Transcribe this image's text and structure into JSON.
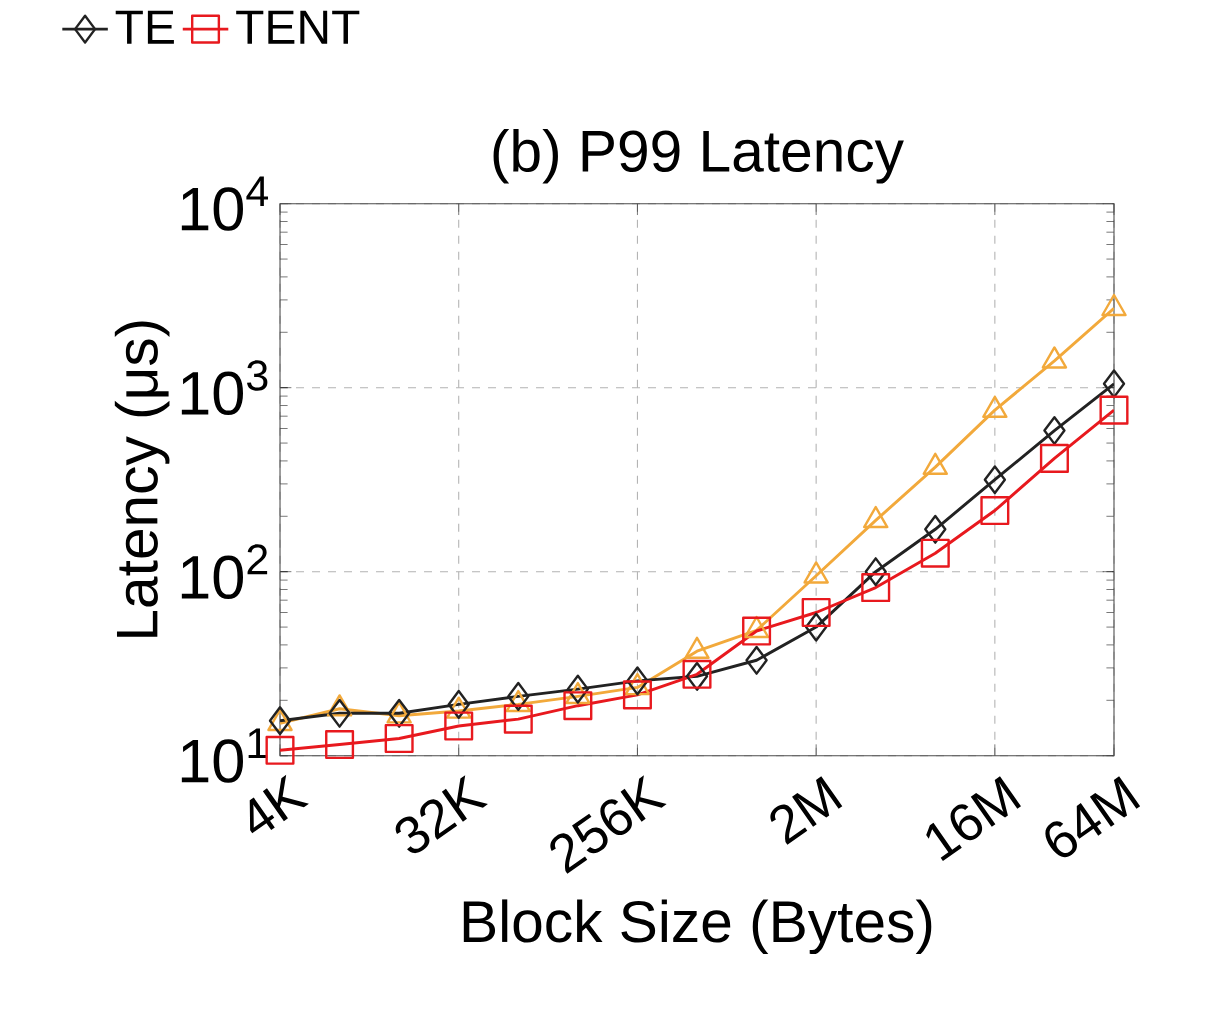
{
  "chart_data": {
    "type": "line",
    "title": "(b) P99 Latency",
    "xlabel": "Block Size (Bytes)",
    "ylabel": "Latency (μs)",
    "log": "y",
    "grid": true,
    "legend": "top",
    "line_style": "solid",
    "categories": [
      "4K",
      null,
      null,
      "32K",
      null,
      null,
      "256K",
      null,
      null,
      "2M",
      null,
      null,
      "16M",
      null,
      "64M"
    ],
    "ylim": [
      10,
      10000
    ],
    "yticks": [
      {
        "value": 10,
        "label": "10$^{1}$"
      },
      {
        "value": 100,
        "label": "10$^{2}$"
      },
      {
        "value": 1000,
        "label": "10$^{3}$"
      },
      {
        "value": 10000,
        "label": "10$^{4}$"
      }
    ],
    "series": [
      {
        "color": "#f2a93b",
        "marker": "triangle",
        "values": [
          15,
          18,
          16.5,
          17.5,
          19,
          21,
          23.5,
          37,
          48,
          95,
          190,
          370,
          755,
          1400,
          2700
        ]
      },
      {
        "name": "TE",
        "color": "#222222",
        "marker": "diamond",
        "values": [
          15.5,
          17,
          17,
          19,
          21,
          23,
          25.5,
          27,
          33,
          50,
          100,
          170,
          316,
          585,
          1050
        ]
      },
      {
        "name": "TENT",
        "color": "#e8191e",
        "marker": "square",
        "values": [
          10.7,
          11.5,
          12.4,
          14.5,
          15.8,
          18.7,
          21.4,
          27.7,
          47.6,
          60,
          82,
          126,
          215,
          413,
          755
        ]
      }
    ]
  }
}
